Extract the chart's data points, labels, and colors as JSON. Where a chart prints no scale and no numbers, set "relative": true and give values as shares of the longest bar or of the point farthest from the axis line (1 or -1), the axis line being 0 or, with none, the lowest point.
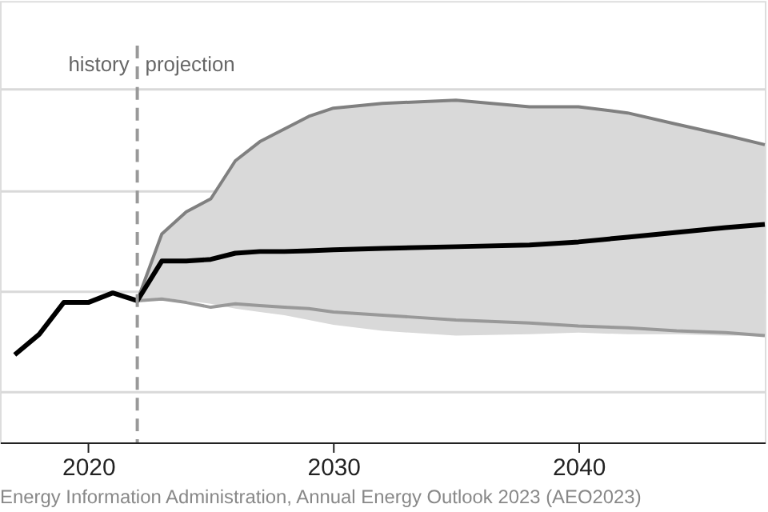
{
  "chart_data": {
    "type": "line",
    "relative": true,
    "xlim": [
      2016.4,
      2047.6
    ],
    "xticks": [
      2020,
      2030,
      2040
    ],
    "grid": "y",
    "tick_labels": "x",
    "series": [
      {
        "color": "#808080",
        "x": [
          2022,
          2023,
          2024,
          2025,
          2026,
          2027,
          2028,
          2029,
          2030,
          2032,
          2035,
          2038,
          2040,
          2042,
          2044,
          2046,
          2047.6
        ],
        "values": [
          0.414,
          0.609,
          0.674,
          0.712,
          0.823,
          0.879,
          0.916,
          0.953,
          0.977,
          0.991,
          1.0,
          0.981,
          0.981,
          0.963,
          0.93,
          0.898,
          0.87
        ]
      },
      {
        "color": "#999999",
        "x": [
          2022,
          2023,
          2024,
          2025,
          2026,
          2027,
          2028,
          2029,
          2030,
          2032,
          2035,
          2038,
          2040,
          2042,
          2044,
          2046,
          2047.6
        ],
        "values": [
          0.414,
          0.419,
          0.409,
          0.395,
          0.405,
          0.4,
          0.395,
          0.391,
          0.381,
          0.372,
          0.358,
          0.349,
          0.34,
          0.335,
          0.326,
          0.321,
          0.312
        ]
      },
      {
        "color": "#000000",
        "x": [
          2017,
          2018,
          2019,
          2020,
          2021,
          2022,
          2023,
          2024,
          2025,
          2026,
          2027,
          2028,
          2029,
          2030,
          2032,
          2035,
          2038,
          2040,
          2042,
          2044,
          2046,
          2047.6
        ],
        "values": [
          0.256,
          0.316,
          0.409,
          0.409,
          0.437,
          0.414,
          0.53,
          0.53,
          0.535,
          0.553,
          0.558,
          0.558,
          0.56,
          0.563,
          0.567,
          0.572,
          0.577,
          0.586,
          0.6,
          0.614,
          0.628,
          0.637
        ],
        "lower": [
          null,
          null,
          null,
          null,
          null,
          0.414,
          0.423,
          0.414,
          0.405,
          0.391,
          0.381,
          0.372,
          0.358,
          0.344,
          0.326,
          0.312,
          0.316,
          0.321,
          0.316,
          0.316,
          0.312,
          0.312
        ],
        "upper": [
          null,
          null,
          null,
          null,
          null,
          0.414,
          0.609,
          0.674,
          0.712,
          0.823,
          0.879,
          0.916,
          0.953,
          0.977,
          0.991,
          1.0,
          0.981,
          0.981,
          0.963,
          0.93,
          0.898,
          0.87
        ]
      }
    ],
    "ref_lines": [
      {
        "axis": "x",
        "value": 2022,
        "color": "#999999",
        "line_style": "dashed"
      }
    ],
    "annotations": [
      "history",
      "projection",
      "Energy Information Administration, Annual Energy Outlook 2023 (AEO2023)"
    ]
  }
}
